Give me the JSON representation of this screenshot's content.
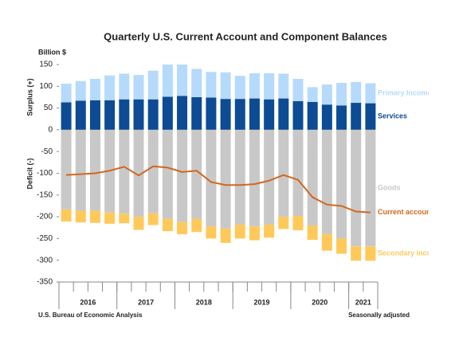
{
  "chart_data": {
    "type": "bar",
    "title": "Quarterly U.S. Current Account and Component Balances",
    "y_unit_label": "Billion $",
    "surplus_label": "Surplus (+)",
    "deficit_label": "Deficit (-)",
    "source": "U.S. Bureau of Economic Analysis",
    "note": "Seasonally adjusted",
    "categories": [
      null,
      null,
      null,
      null,
      null,
      null,
      null,
      null,
      null,
      null,
      null,
      null,
      null,
      null,
      null,
      null,
      null,
      null,
      null,
      null,
      null,
      null
    ],
    "groups": [
      {
        "label": "2016",
        "span": 4
      },
      {
        "label": "2017",
        "span": 4
      },
      {
        "label": "2018",
        "span": 4
      },
      {
        "label": "2019",
        "span": 4
      },
      {
        "label": "2020",
        "span": 4
      },
      {
        "label": "2021",
        "span": 2
      }
    ],
    "ylim": [
      -350,
      150
    ],
    "yticks": [
      -350,
      -300,
      -250,
      -200,
      -150,
      -100,
      -50,
      0,
      50,
      100,
      150
    ],
    "series": [
      {
        "name": "Services",
        "kind": "bar",
        "color": "#0d4c94",
        "values": [
          63,
          67,
          68,
          68,
          70,
          70,
          70,
          76,
          78,
          75,
          74,
          71,
          71,
          72,
          70,
          72,
          66,
          64,
          58,
          56,
          62,
          61
        ]
      },
      {
        "name": "Primary Income",
        "kind": "bar",
        "color": "#b6dafb",
        "values": [
          43,
          45,
          49,
          57,
          59,
          56,
          66,
          74,
          72,
          65,
          59,
          61,
          53,
          58,
          60,
          57,
          51,
          34,
          46,
          52,
          48,
          46
        ]
      },
      {
        "name": "Goods",
        "kind": "bar",
        "color": "#c8c8c8",
        "values": [
          -183,
          -186,
          -186,
          -190,
          -193,
          -200,
          -192,
          -205,
          -212,
          -205,
          -222,
          -227,
          -218,
          -222,
          -218,
          -200,
          -198,
          -220,
          -240,
          -250,
          -268,
          -268
        ]
      },
      {
        "name": "Secondary income",
        "kind": "bar",
        "color": "#ffc95a",
        "values": [
          -28,
          -27,
          -28,
          -26,
          -22,
          -30,
          -27,
          -28,
          -28,
          -30,
          -28,
          -33,
          -32,
          -32,
          -30,
          -28,
          -33,
          -33,
          -38,
          -35,
          -33,
          -33
        ]
      },
      {
        "name": "Current account",
        "kind": "line",
        "color": "#d4661c",
        "values": [
          -104,
          -102,
          -100,
          -94,
          -85,
          -105,
          -84,
          -87,
          -97,
          -94,
          -120,
          -127,
          -127,
          -125,
          -117,
          -104,
          -115,
          -155,
          -172,
          -175,
          -188,
          -190
        ]
      }
    ]
  }
}
